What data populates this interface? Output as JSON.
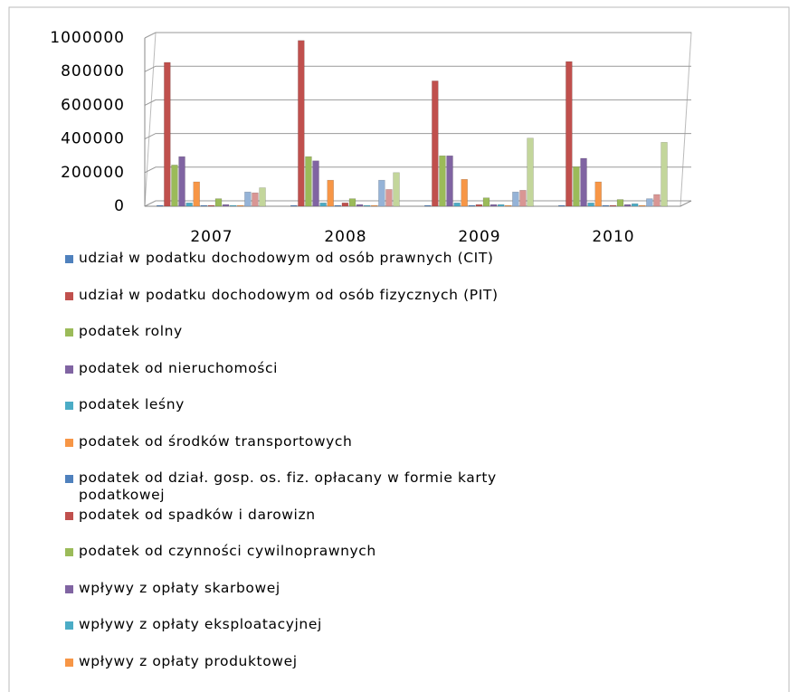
{
  "chart_data": {
    "type": "bar",
    "categories": [
      "2007",
      "2008",
      "2009",
      "2010"
    ],
    "ylim": [
      0,
      1000000
    ],
    "yticks": [
      0,
      200000,
      400000,
      600000,
      800000,
      1000000
    ],
    "grid": true,
    "series": [
      {
        "name": "udział w podatku dochodowym od osób prawnych (CIT)",
        "color": "#4f81bd",
        "values": [
          5000,
          5000,
          5000,
          5000
        ]
      },
      {
        "name": "udział w podatku dochodowym od osób fizycznych (PIT)",
        "color": "#c0504d",
        "values": [
          855000,
          985000,
          745000,
          860000
        ]
      },
      {
        "name": "podatek rolny",
        "color": "#9bbb59",
        "values": [
          245000,
          295000,
          300000,
          235000
        ]
      },
      {
        "name": "podatek od nieruchomości",
        "color": "#8064a2",
        "values": [
          295000,
          270000,
          300000,
          285000
        ]
      },
      {
        "name": "podatek leśny",
        "color": "#4bacc6",
        "values": [
          20000,
          20000,
          20000,
          20000
        ]
      },
      {
        "name": "podatek od środków transportowych",
        "color": "#f79646",
        "values": [
          145000,
          155000,
          160000,
          145000
        ]
      },
      {
        "name": "podatek od dział. gosp. os. fiz. opłacany w formie karty podatkowej",
        "color": "#4f81bd",
        "values": [
          5000,
          5000,
          5000,
          5000
        ]
      },
      {
        "name": "podatek od spadków i darowizn",
        "color": "#c0504d",
        "values": [
          5000,
          20000,
          10000,
          5000
        ]
      },
      {
        "name": "podatek od czynności cywilnoprawnych",
        "color": "#9bbb59",
        "values": [
          45000,
          45000,
          50000,
          40000
        ]
      },
      {
        "name": "wpływy z opłaty skarbowej",
        "color": "#8064a2",
        "values": [
          10000,
          10000,
          10000,
          10000
        ]
      },
      {
        "name": "wpływy z opłaty eksploatacyjnej",
        "color": "#4bacc6",
        "values": [
          5000,
          5000,
          10000,
          15000
        ]
      },
      {
        "name": "wpływy z opłaty produktowej",
        "color": "#f79646",
        "values": [
          5000,
          5000,
          5000,
          5000
        ]
      },
      {
        "color": "#95b3d7",
        "values": [
          85000,
          155000,
          85000,
          45000
        ]
      },
      {
        "color": "#d99694",
        "values": [
          80000,
          100000,
          95000,
          70000
        ]
      },
      {
        "color": "#c3d69b",
        "values": [
          110000,
          200000,
          405000,
          380000
        ]
      }
    ]
  }
}
